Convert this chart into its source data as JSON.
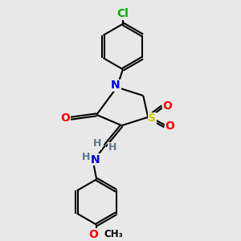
{
  "bg_color": "#e8e8e8",
  "bond_color": "#000000",
  "bond_width": 1.5,
  "atom_colors": {
    "N": "#0000cc",
    "S": "#cccc00",
    "O": "#ff0000",
    "Cl": "#00aa00",
    "C": "#000000",
    "H": "#5a7a8a"
  },
  "font_size_atom": 10,
  "font_size_small": 8.5
}
